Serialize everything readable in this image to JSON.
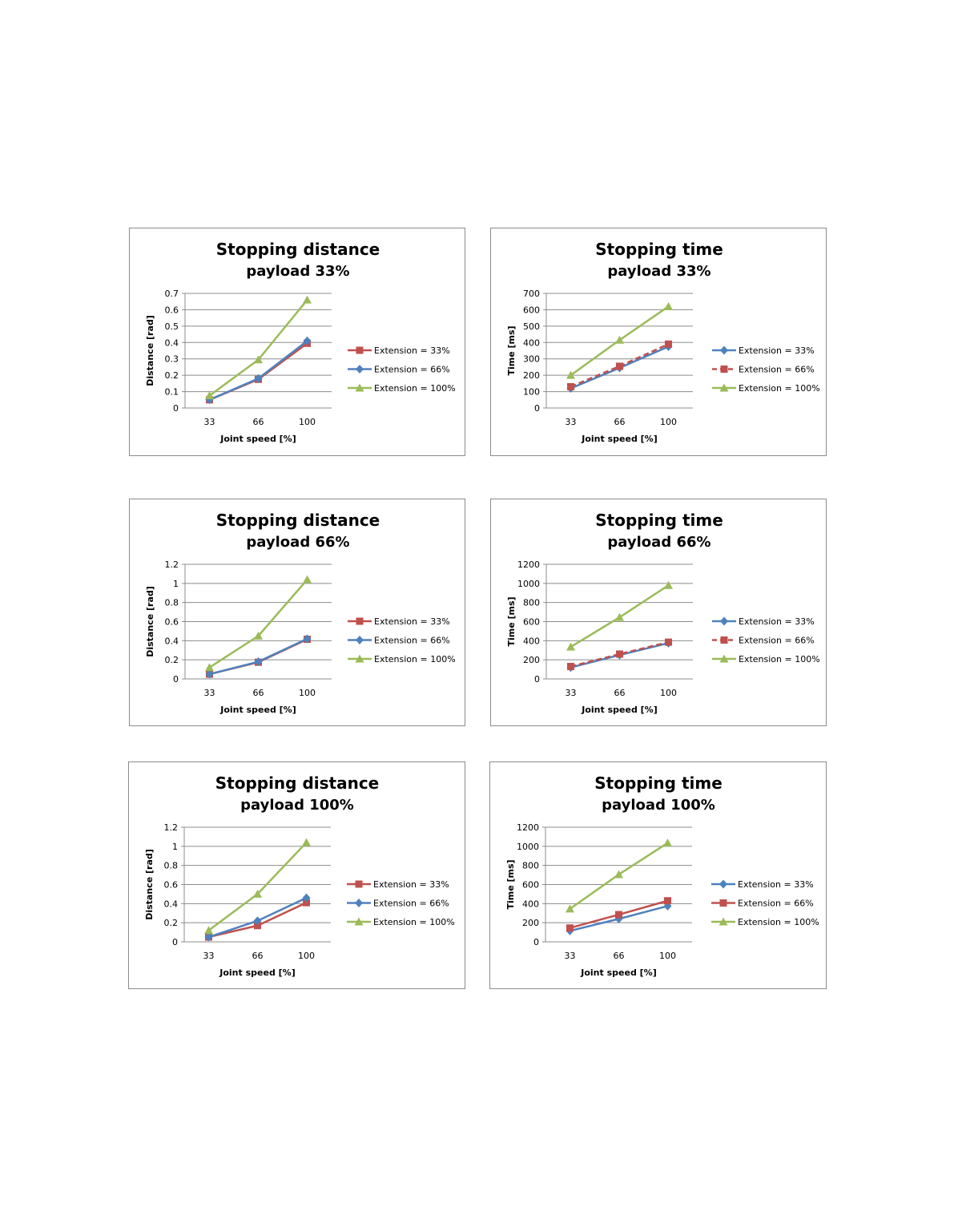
{
  "chart_data": [
    {
      "type": "line",
      "title": "Stopping distance",
      "subtitle": "payload 33%",
      "xlabel": "Joint speed [%]",
      "ylabel": "Distance [rad]",
      "categories": [
        "33",
        "66",
        "100"
      ],
      "ylim": [
        0,
        0.7
      ],
      "yticks": [
        "0",
        "0.1",
        "0.2",
        "0.3",
        "0.4",
        "0.5",
        "0.6",
        "0.7"
      ],
      "grid": true,
      "legend": "right",
      "series": [
        {
          "name": "Extension = 33%",
          "values": [
            0.05,
            0.175,
            0.395
          ],
          "color": "#c0504d",
          "marker": "square",
          "dash": false
        },
        {
          "name": "Extension = 66%",
          "values": [
            0.05,
            0.18,
            0.41
          ],
          "color": "#4f81bd",
          "marker": "diamond",
          "dash": false
        },
        {
          "name": "Extension = 100%",
          "values": [
            0.075,
            0.295,
            0.66
          ],
          "color": "#9bbb59",
          "marker": "triangle",
          "dash": false
        }
      ]
    },
    {
      "type": "line",
      "title": "Stopping time",
      "subtitle": "payload 33%",
      "xlabel": "Joint speed [%]",
      "ylabel": "Time [ms]",
      "categories": [
        "33",
        "66",
        "100"
      ],
      "ylim": [
        0,
        700
      ],
      "yticks": [
        "0",
        "100",
        "200",
        "300",
        "400",
        "500",
        "600",
        "700"
      ],
      "grid": true,
      "legend": "right",
      "series": [
        {
          "name": "Extension = 33%",
          "values": [
            120,
            245,
            375
          ],
          "color": "#4f81bd",
          "marker": "diamond",
          "dash": false
        },
        {
          "name": "Extension = 66%",
          "values": [
            130,
            255,
            390
          ],
          "color": "#c0504d",
          "marker": "square",
          "dash": true
        },
        {
          "name": "Extension = 100%",
          "values": [
            200,
            415,
            620
          ],
          "color": "#9bbb59",
          "marker": "triangle",
          "dash": false
        }
      ]
    },
    {
      "type": "line",
      "title": "Stopping distance",
      "subtitle": "payload 66%",
      "xlabel": "Joint speed [%]",
      "ylabel": "Distance [rad]",
      "categories": [
        "33",
        "66",
        "100"
      ],
      "ylim": [
        0,
        1.2
      ],
      "yticks": [
        "0",
        "0.2",
        "0.4",
        "0.6",
        "0.8",
        "1",
        "1.2"
      ],
      "grid": true,
      "legend": "right",
      "series": [
        {
          "name": "Extension = 33%",
          "values": [
            0.05,
            0.175,
            0.415
          ],
          "color": "#c0504d",
          "marker": "square",
          "dash": false
        },
        {
          "name": "Extension = 66%",
          "values": [
            0.05,
            0.18,
            0.42
          ],
          "color": "#4f81bd",
          "marker": "diamond",
          "dash": false
        },
        {
          "name": "Extension = 100%",
          "values": [
            0.12,
            0.45,
            1.04
          ],
          "color": "#9bbb59",
          "marker": "triangle",
          "dash": false
        }
      ]
    },
    {
      "type": "line",
      "title": "Stopping time",
      "subtitle": "payload 66%",
      "xlabel": "Joint speed [%]",
      "ylabel": "Time [ms]",
      "categories": [
        "33",
        "66",
        "100"
      ],
      "ylim": [
        0,
        1200
      ],
      "yticks": [
        "0",
        "200",
        "400",
        "600",
        "800",
        "1000",
        "1200"
      ],
      "grid": true,
      "legend": "right",
      "series": [
        {
          "name": "Extension = 33%",
          "values": [
            120,
            250,
            375
          ],
          "color": "#4f81bd",
          "marker": "diamond",
          "dash": false
        },
        {
          "name": "Extension = 66%",
          "values": [
            130,
            260,
            385
          ],
          "color": "#c0504d",
          "marker": "square",
          "dash": true
        },
        {
          "name": "Extension = 100%",
          "values": [
            335,
            645,
            980
          ],
          "color": "#9bbb59",
          "marker": "triangle",
          "dash": false
        }
      ]
    },
    {
      "type": "line",
      "title": "Stopping distance",
      "subtitle": "payload 100%",
      "xlabel": "Joint speed [%]",
      "ylabel": "Distance [rad]",
      "categories": [
        "33",
        "66",
        "100"
      ],
      "ylim": [
        0,
        1.2
      ],
      "yticks": [
        "0",
        "0.2",
        "0.4",
        "0.6",
        "0.8",
        "1",
        "1.2"
      ],
      "grid": true,
      "legend": "right",
      "series": [
        {
          "name": "Extension = 33%",
          "values": [
            0.05,
            0.17,
            0.41
          ],
          "color": "#c0504d",
          "marker": "square",
          "dash": false
        },
        {
          "name": "Extension = 66%",
          "values": [
            0.05,
            0.22,
            0.46
          ],
          "color": "#4f81bd",
          "marker": "diamond",
          "dash": false
        },
        {
          "name": "Extension = 100%",
          "values": [
            0.12,
            0.5,
            1.04
          ],
          "color": "#9bbb59",
          "marker": "triangle",
          "dash": false
        }
      ]
    },
    {
      "type": "line",
      "title": "Stopping time",
      "subtitle": "payload 100%",
      "xlabel": "Joint speed [%]",
      "ylabel": "Time [ms]",
      "categories": [
        "33",
        "66",
        "100"
      ],
      "ylim": [
        0,
        1200
      ],
      "yticks": [
        "0",
        "200",
        "400",
        "600",
        "800",
        "1000",
        "1200"
      ],
      "grid": true,
      "legend": "right",
      "series": [
        {
          "name": "Extension = 33%",
          "values": [
            115,
            240,
            375
          ],
          "color": "#4f81bd",
          "marker": "diamond",
          "dash": false
        },
        {
          "name": "Extension = 66%",
          "values": [
            145,
            285,
            430
          ],
          "color": "#c0504d",
          "marker": "square",
          "dash": false
        },
        {
          "name": "Extension = 100%",
          "values": [
            345,
            705,
            1035
          ],
          "color": "#9bbb59",
          "marker": "triangle",
          "dash": false
        }
      ]
    }
  ]
}
